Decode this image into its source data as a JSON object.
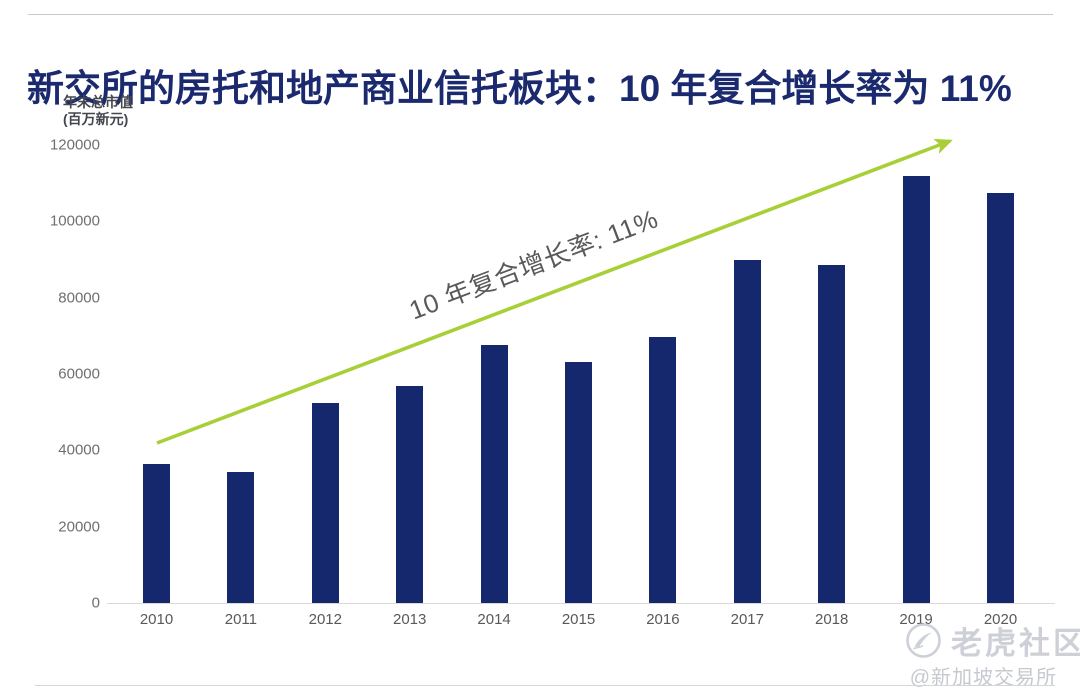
{
  "page": {
    "title": "新交所的房托和地产商业信托板块：10 年复合增长率为 11%",
    "watermark": {
      "brand": "老虎社区",
      "handle": "@新加坡交易所"
    }
  },
  "chart_data": {
    "type": "bar",
    "title": "新交所的房托和地产商业信托板块：10 年复合增长率为 11%",
    "y_axis_title_line1": "年末总市值",
    "y_axis_title_line2": "(百万新元)",
    "categories": [
      "2010",
      "2011",
      "2012",
      "2013",
      "2014",
      "2015",
      "2016",
      "2017",
      "2018",
      "2019",
      "2020"
    ],
    "values": [
      36500,
      34400,
      52400,
      56900,
      67600,
      63200,
      69700,
      90000,
      88600,
      112000,
      107500
    ],
    "ylim": [
      0,
      120000
    ],
    "y_ticks": [
      0,
      20000,
      40000,
      60000,
      80000,
      100000,
      120000
    ],
    "annotation": "10 年复合增长率: 11%",
    "bar_color": "#16286d",
    "arrow_color": "#a9cf38",
    "grid": false,
    "legend_position": "none"
  }
}
